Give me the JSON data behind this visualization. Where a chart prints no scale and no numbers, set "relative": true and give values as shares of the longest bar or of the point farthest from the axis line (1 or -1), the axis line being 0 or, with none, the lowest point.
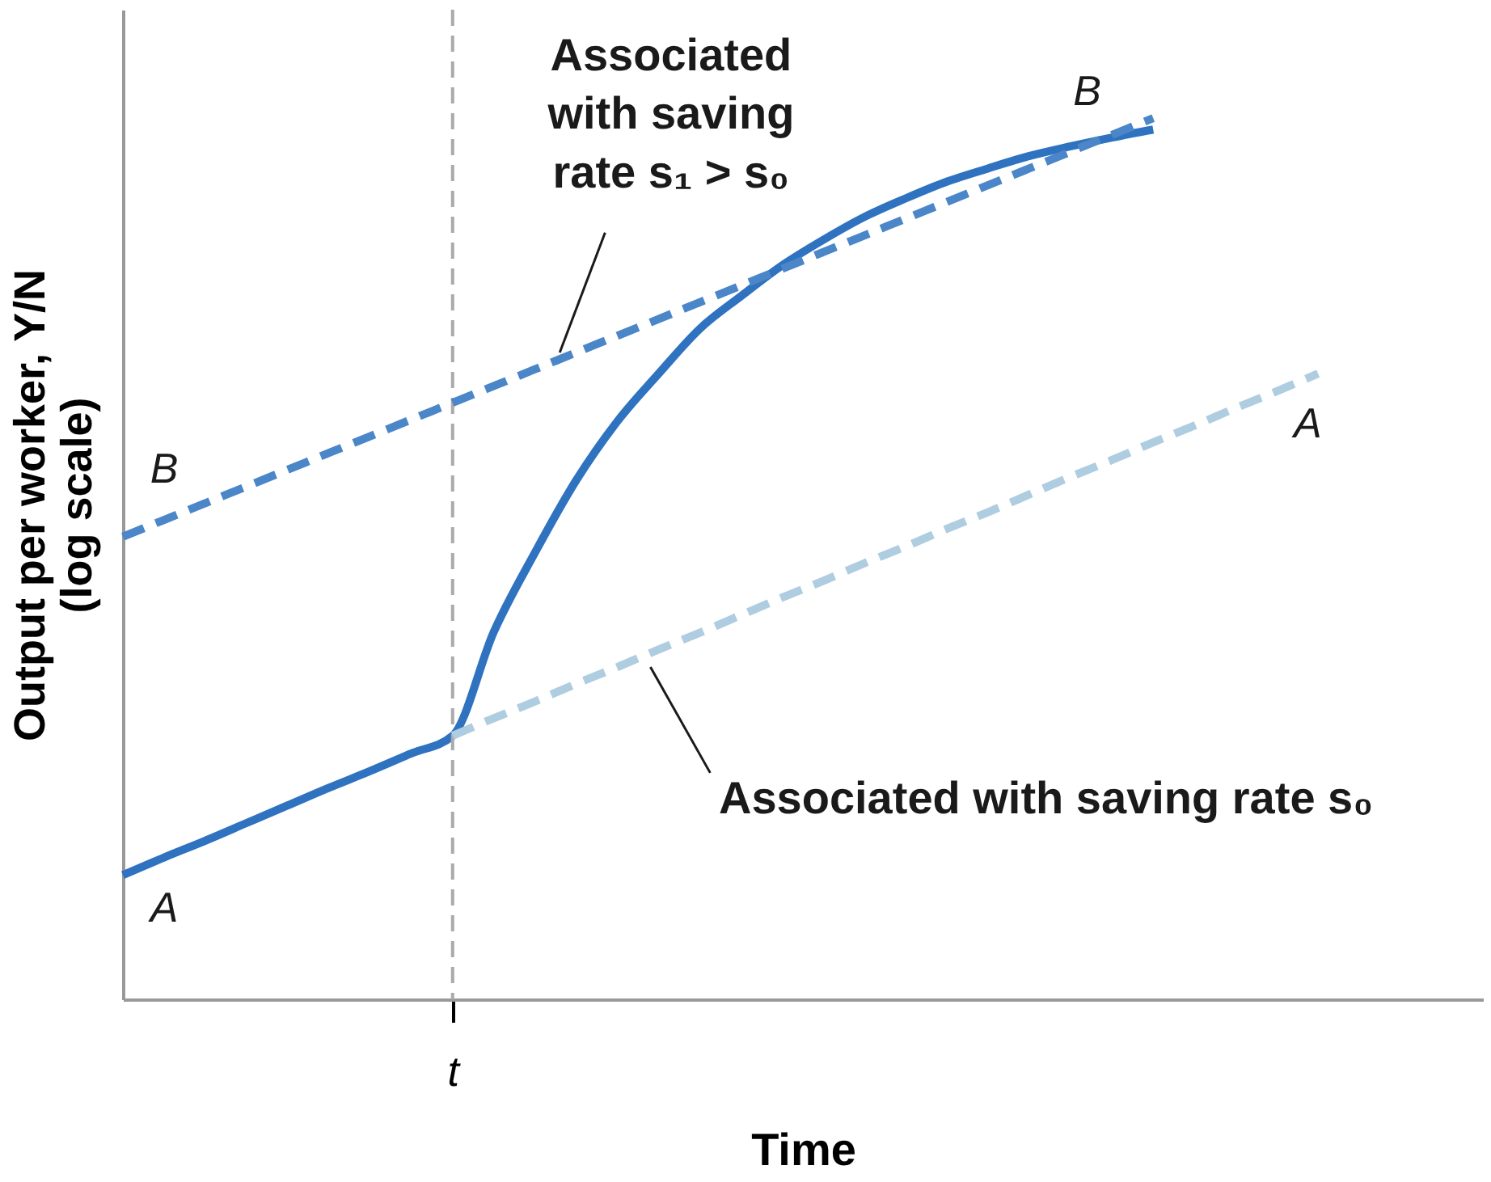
{
  "chart_data": {
    "type": "line",
    "relative": true,
    "xlabel": "Time",
    "ylabel": "Output per worker, Y/N\n(log scale)",
    "categories": [
      null,
      null,
      null,
      null,
      null,
      null,
      null,
      null,
      null,
      null,
      null,
      null,
      null,
      null,
      null,
      null,
      null,
      null,
      null,
      null,
      null,
      null,
      null,
      null,
      null,
      null,
      null,
      null,
      null,
      null,
      null,
      null,
      null,
      null
    ],
    "series": [
      {
        "color": "#2f73c0",
        "line_style": "solid",
        "values": [
          0.141,
          0.161,
          0.18,
          0.2,
          0.22,
          0.24,
          0.259,
          0.279,
          0.299,
          0.417,
          0.507,
          0.589,
          0.656,
          0.71,
          0.761,
          0.798,
          0.833,
          0.862,
          0.888,
          0.909,
          0.928,
          0.943,
          0.957,
          0.968,
          0.978,
          0.987,
          null,
          null,
          null,
          null,
          null,
          null,
          null,
          null
        ]
      },
      {
        "color": "#4a86c8",
        "line_style": "dashed",
        "values": [
          0.525,
          0.544,
          0.563,
          0.582,
          0.601,
          0.62,
          0.639,
          0.658,
          0.677,
          0.696,
          0.715,
          0.734,
          0.753,
          0.772,
          0.791,
          0.81,
          0.829,
          0.848,
          0.867,
          0.886,
          0.905,
          0.924,
          0.943,
          0.962,
          0.981,
          1.0,
          null,
          null,
          null,
          null,
          null,
          null,
          null,
          null
        ]
      },
      {
        "color": "#aecde0",
        "line_style": "dashed",
        "values": [
          null,
          null,
          null,
          null,
          null,
          null,
          null,
          null,
          0.299,
          0.319,
          0.338,
          0.358,
          0.377,
          0.397,
          0.416,
          0.436,
          0.456,
          0.475,
          0.495,
          0.514,
          0.534,
          0.553,
          0.573,
          0.593,
          0.612,
          0.632,
          0.651,
          0.671,
          0.69,
          0.71,
          null,
          null,
          null,
          null
        ]
      }
    ],
    "annotations": [
      "Associated with saving rate s₁ > s₀",
      "Associated with saving rate s₀",
      "A",
      "B",
      "B",
      "A",
      "t"
    ],
    "grid": false
  }
}
